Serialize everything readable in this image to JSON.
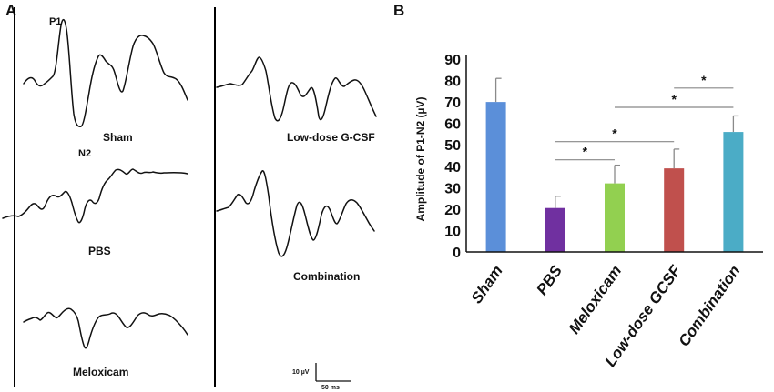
{
  "panel_a": {
    "letter": "A",
    "traces": [
      {
        "name": "Sham",
        "peak_p1": "P1",
        "trough_n2": "N2"
      },
      {
        "name": "PBS"
      },
      {
        "name": "Meloxicam"
      },
      {
        "name": "Low-dose G-CSF"
      },
      {
        "name": "Combination"
      }
    ],
    "scale_bar": {
      "amplitude": "10 µV",
      "time": "50 ms"
    }
  },
  "panel_b": {
    "letter": "B"
  },
  "chart_data": {
    "type": "bar",
    "title": "",
    "xlabel": "",
    "ylabel": "Amplitude of P1-N2 (µV)",
    "ylim": [
      0,
      90
    ],
    "yticks": [
      0,
      10,
      20,
      30,
      40,
      50,
      60,
      70,
      80,
      90
    ],
    "grid": false,
    "categories": [
      "Sham",
      "PBS",
      "Meloxicam",
      "Low-dose GCSF",
      "Combination"
    ],
    "values": [
      70,
      20.5,
      32,
      39,
      56
    ],
    "errors": [
      11,
      5.5,
      8.5,
      9,
      7.5
    ],
    "colors": [
      "#5b8fd9",
      "#7030a0",
      "#92d050",
      "#c0504d",
      "#4bacc6"
    ],
    "significance": [
      {
        "from": "PBS",
        "to": "Meloxicam",
        "y": 43,
        "label": "*"
      },
      {
        "from": "PBS",
        "to": "Low-dose GCSF",
        "y": 51.5,
        "label": "*"
      },
      {
        "from": "Meloxicam",
        "to": "Combination",
        "y": 67.5,
        "label": "*"
      },
      {
        "from": "Low-dose GCSF",
        "to": "Combination",
        "y": 76.5,
        "label": "*"
      }
    ]
  }
}
